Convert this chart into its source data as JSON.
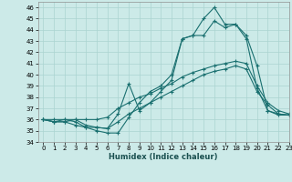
{
  "xlabel": "Humidex (Indice chaleur)",
  "xlim": [
    -0.5,
    23
  ],
  "ylim": [
    34,
    46.5
  ],
  "yticks": [
    34,
    35,
    36,
    37,
    38,
    39,
    40,
    41,
    42,
    43,
    44,
    45,
    46
  ],
  "xticks": [
    0,
    1,
    2,
    3,
    4,
    5,
    6,
    7,
    8,
    9,
    10,
    11,
    12,
    13,
    14,
    15,
    16,
    17,
    18,
    19,
    20,
    21,
    22,
    23
  ],
  "background_color": "#cceae8",
  "grid_color": "#aad4d0",
  "line_color": "#1a7070",
  "lines": [
    [
      36.0,
      36.0,
      36.0,
      35.8,
      35.3,
      35.3,
      35.2,
      35.8,
      36.5,
      37.0,
      37.5,
      38.0,
      38.5,
      39.0,
      39.5,
      40.0,
      40.3,
      40.5,
      40.8,
      40.5,
      38.5,
      37.3,
      36.5,
      36.4
    ],
    [
      36.0,
      35.8,
      35.8,
      36.0,
      36.0,
      36.0,
      36.2,
      37.0,
      37.5,
      38.0,
      38.3,
      38.8,
      39.2,
      39.8,
      40.2,
      40.5,
      40.8,
      41.0,
      41.2,
      41.0,
      39.0,
      37.5,
      36.8,
      36.5
    ],
    [
      36.0,
      35.8,
      36.0,
      36.0,
      35.5,
      35.3,
      35.2,
      36.5,
      39.2,
      36.8,
      37.5,
      38.5,
      39.5,
      43.2,
      43.5,
      45.0,
      46.0,
      44.5,
      44.5,
      43.5,
      40.8,
      36.8,
      36.5,
      36.4
    ],
    [
      36.0,
      35.8,
      35.8,
      35.5,
      35.3,
      35.0,
      34.8,
      34.8,
      36.2,
      37.5,
      38.5,
      39.0,
      40.0,
      43.2,
      43.5,
      43.5,
      44.8,
      44.2,
      44.5,
      43.2,
      38.8,
      36.8,
      36.4,
      36.4
    ]
  ]
}
